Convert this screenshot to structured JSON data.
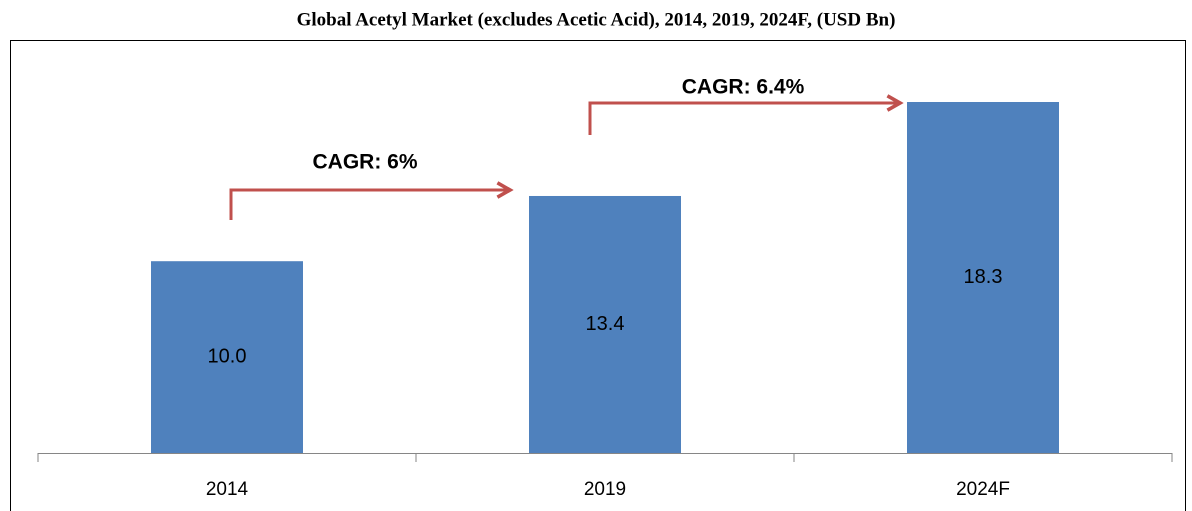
{
  "chart_data": {
    "type": "bar",
    "title": "Global Acetyl Market (excludes Acetic Acid), 2014, 2019, 2024F, (USD Bn)",
    "categories": [
      "2014",
      "2019",
      "2024F"
    ],
    "values": [
      10.0,
      13.4,
      18.3
    ],
    "value_labels": [
      "10.0",
      "13.4",
      "18.3"
    ],
    "color": "#4f81bd",
    "annotations": [
      "CAGR: 6%",
      "CAGR: 6.4%"
    ]
  }
}
